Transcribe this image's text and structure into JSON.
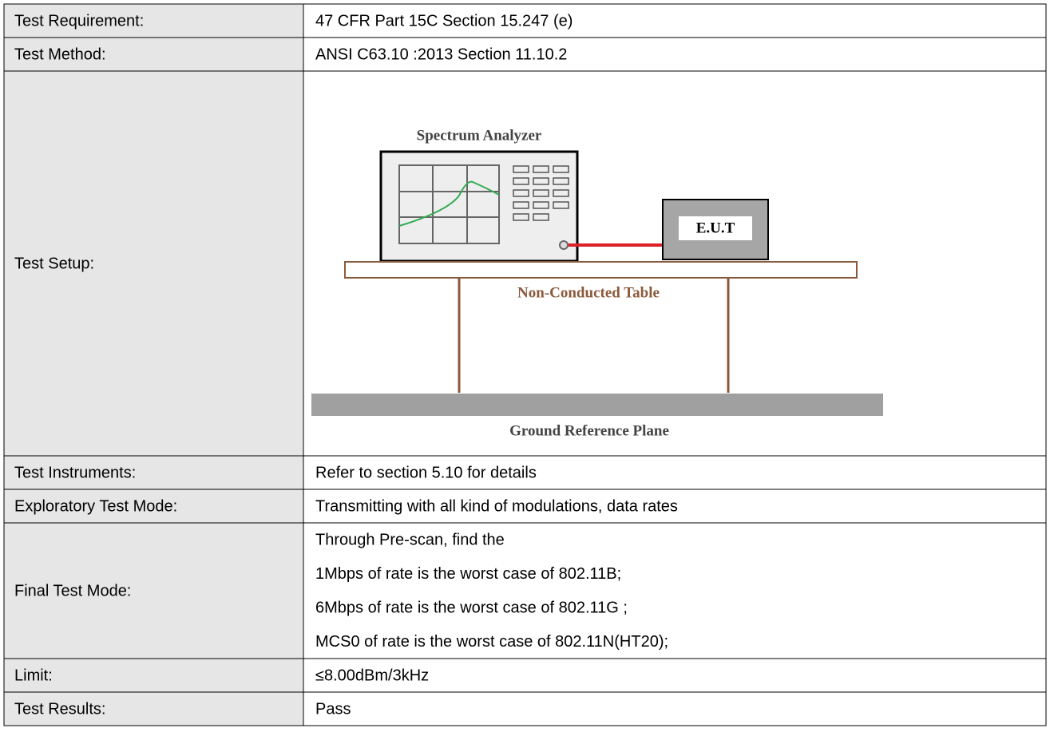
{
  "rows": [
    {
      "label": "Test Requirement:",
      "value": "47 CFR Part 15C Section 15.247 (e)"
    },
    {
      "label": "Test Method:",
      "value": "ANSI C63.10 :2013 Section 11.10.2"
    },
    {
      "label": "Test Setup:"
    },
    {
      "label": "Test Instruments:",
      "value": "Refer to section 5.10 for details"
    },
    {
      "label": "Exploratory Test Mode:",
      "value": "Transmitting with all kind of modulations, data rates"
    },
    {
      "label": "Final Test Mode:",
      "value": [
        "Through Pre-scan, find the",
        "1Mbps of rate is the worst case of 802.11B;",
        "6Mbps of rate is the worst case of 802.11G ;",
        "MCS0 of rate is the worst case of 802.11N(HT20);"
      ]
    },
    {
      "label": "Limit:",
      "value": "≤8.00dBm/3kHz"
    },
    {
      "label": "Test Results:",
      "value": "Pass"
    }
  ],
  "diagram": {
    "analyzer_label": "Spectrum Analyzer",
    "eut_label": "E.U.T",
    "table_label": "Non-Conducted Table",
    "ground_label": "Ground Reference Plane"
  }
}
